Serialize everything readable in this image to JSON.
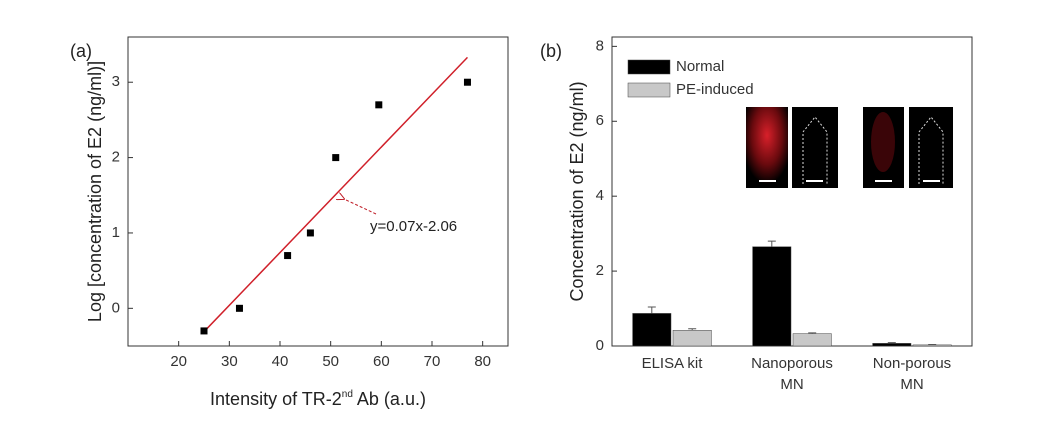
{
  "chart_data": [
    {
      "type": "scatter",
      "panel_label": "(a)",
      "xlabel": [
        "Intensity of TR-2",
        "nd",
        " Ab (a.u.)"
      ],
      "ylabel": "Log [concentration of E2 (ng/ml)]",
      "xlim": [
        10,
        85
      ],
      "ylim": [
        -0.5,
        3.6
      ],
      "xticks": [
        20,
        30,
        40,
        50,
        60,
        70,
        80
      ],
      "yticks": [
        0,
        1,
        2,
        3
      ],
      "points": {
        "color": "#000000",
        "x": [
          25,
          32,
          41.5,
          46,
          51,
          59.5,
          77
        ],
        "y": [
          -0.3,
          0,
          0.7,
          1.0,
          2.0,
          2.7,
          3.0
        ]
      },
      "fit": {
        "color": "#d0202a",
        "x": [
          25,
          77
        ],
        "y": [
          -0.31,
          3.33
        ]
      },
      "annotation": "y=0.07x-2.06"
    },
    {
      "type": "bar",
      "panel_label": "(b)",
      "ylabel": "Concentration of E2 (ng/ml)",
      "categories": [
        [
          "ELISA kit"
        ],
        [
          "Nanoporous",
          "MN"
        ],
        [
          "Non-porous",
          "MN"
        ]
      ],
      "ylim": [
        0,
        8.25
      ],
      "yticks": [
        0,
        2,
        4,
        6,
        8
      ],
      "series": [
        {
          "name": "Normal",
          "color": "#000000",
          "values": [
            0.87,
            2.65,
            0.07
          ],
          "errors": [
            0.17,
            0.15,
            0.02
          ]
        },
        {
          "name": "PE-induced",
          "color": "#c8c8c8",
          "values": [
            0.42,
            0.33,
            0.03
          ],
          "errors": [
            0.04,
            0.02,
            0.01
          ]
        }
      ]
    }
  ]
}
